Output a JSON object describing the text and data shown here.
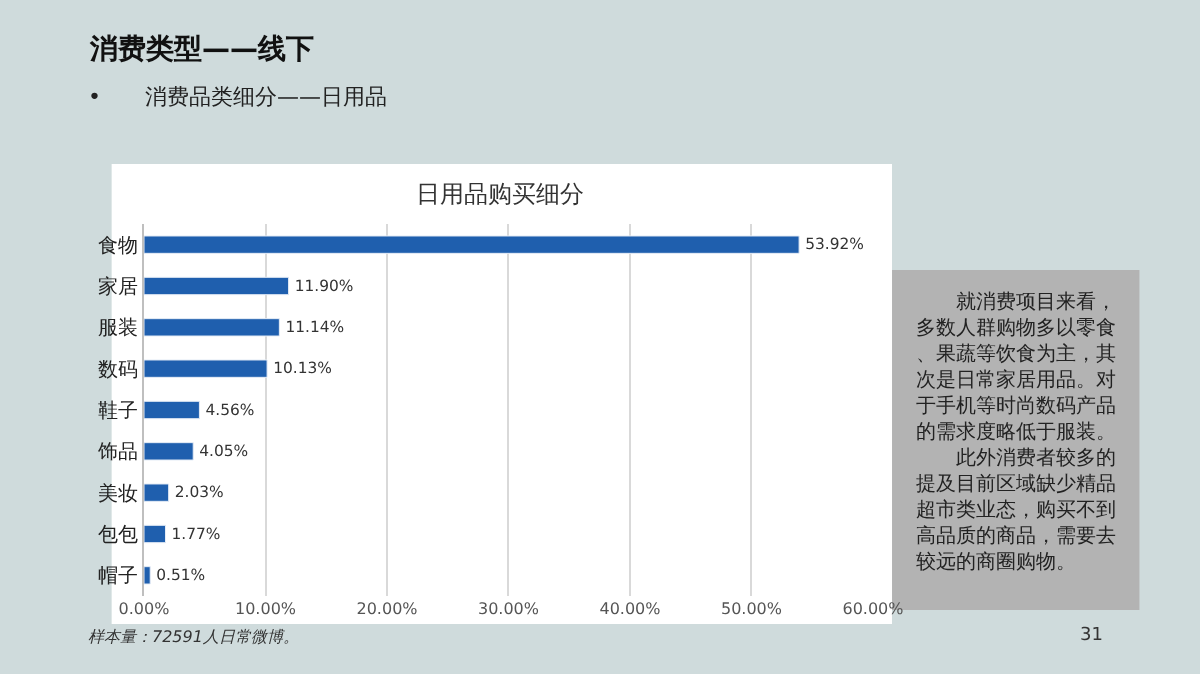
{
  "chart_data": {
    "type": "bar",
    "orientation": "horizontal",
    "title": "日用品购买细分",
    "categories": [
      "食物",
      "家居",
      "服装",
      "数码",
      "鞋子",
      "饰品",
      "美妆",
      "包包",
      "帽子"
    ],
    "values": [
      53.92,
      11.9,
      11.14,
      10.13,
      4.56,
      4.05,
      2.03,
      1.77,
      0.51
    ],
    "value_labels": [
      "53.92%",
      "11.90%",
      "11.14%",
      "10.13%",
      "4.56%",
      "4.05%",
      "2.03%",
      "1.77%",
      "0.51%"
    ],
    "color": "#1f5fae",
    "xlim": [
      0,
      60
    ],
    "xticks": [
      {
        "value": 0,
        "label": "0.00%"
      },
      {
        "value": 10,
        "label": "10.00%"
      },
      {
        "value": 20,
        "label": "20.00%"
      },
      {
        "value": 30,
        "label": "30.00%"
      },
      {
        "value": 40,
        "label": "40.00%"
      },
      {
        "value": 50,
        "label": "50.00%"
      },
      {
        "value": 60,
        "label": "60.00%"
      }
    ],
    "grid": "x",
    "annotations": [
      "消费类型——线下",
      "•　　消费品类细分——日用品",
      "就消费项目来看，多数人群购物多以零食、果蔬等饮食为主，其次是日常家居用品。对于手机等时尚数码产品的需求度略低于服装。",
      "此外消费者较多的提及目前区域缺少精品超市类业态，购买不到高品质的商品，需要去较远的商圈购物。",
      "样本量：72591人日常微博。",
      "31"
    ]
  }
}
